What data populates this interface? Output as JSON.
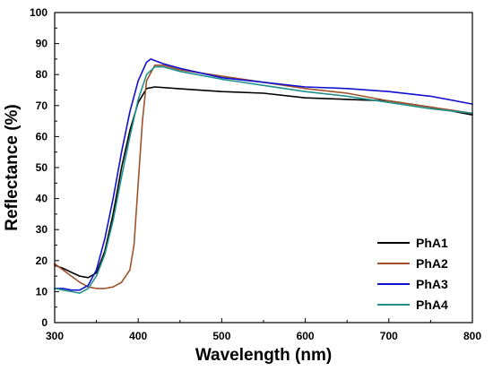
{
  "chart_data": {
    "type": "line",
    "xlabel": "Wavelength (nm)",
    "ylabel": "Reflectance (%)",
    "xlim": [
      300,
      800
    ],
    "ylim": [
      0,
      100
    ],
    "xticks": [
      300,
      400,
      500,
      600,
      700,
      800
    ],
    "yticks": [
      0,
      10,
      20,
      30,
      40,
      50,
      60,
      70,
      80,
      90,
      100
    ],
    "grid": false,
    "legend_position": "bottom-right",
    "series": [
      {
        "name": "PhA1",
        "color": "#000000",
        "x": [
          300,
          310,
          320,
          330,
          340,
          350,
          360,
          370,
          380,
          390,
          400,
          410,
          420,
          450,
          500,
          550,
          600,
          650,
          700,
          750,
          800
        ],
        "y": [
          18.5,
          17.5,
          16.2,
          15,
          14.5,
          16,
          23,
          35,
          50,
          62,
          71,
          75.5,
          76,
          75.4,
          74.5,
          74,
          72.5,
          72,
          71.5,
          69.5,
          67
        ]
      },
      {
        "name": "PhA2",
        "color": "#a0522d",
        "x": [
          300,
          310,
          320,
          330,
          340,
          350,
          360,
          370,
          380,
          390,
          395,
          400,
          405,
          410,
          420,
          430,
          450,
          500,
          550,
          600,
          650,
          700,
          750,
          800
        ],
        "y": [
          19,
          17,
          15,
          13,
          11.5,
          11,
          11,
          11.5,
          13,
          17,
          25,
          45,
          65,
          78,
          83,
          83,
          81.5,
          79.5,
          77.5,
          75.5,
          74,
          71.5,
          69.5,
          67.5
        ]
      },
      {
        "name": "PhA3",
        "color": "#1010d0",
        "x": [
          300,
          310,
          320,
          330,
          340,
          350,
          360,
          370,
          380,
          390,
          400,
          410,
          415,
          420,
          430,
          450,
          500,
          550,
          600,
          650,
          700,
          750,
          800
        ],
        "y": [
          11,
          11,
          10.5,
          10.5,
          12,
          17,
          27,
          40,
          55,
          68,
          78,
          84,
          85,
          84.5,
          83.5,
          82,
          79,
          77.5,
          76,
          75.5,
          74.5,
          73,
          70.5
        ]
      },
      {
        "name": "PhA4",
        "color": "#20908c",
        "x": [
          300,
          310,
          320,
          330,
          340,
          350,
          360,
          370,
          380,
          390,
          400,
          410,
          420,
          430,
          450,
          500,
          550,
          600,
          650,
          700,
          750,
          800
        ],
        "y": [
          11,
          10.5,
          10,
          9.5,
          11,
          15,
          22,
          33,
          47,
          60,
          72,
          80,
          82.5,
          82.5,
          81,
          78.5,
          76.5,
          74.5,
          73,
          71,
          69,
          67.5
        ]
      }
    ]
  }
}
